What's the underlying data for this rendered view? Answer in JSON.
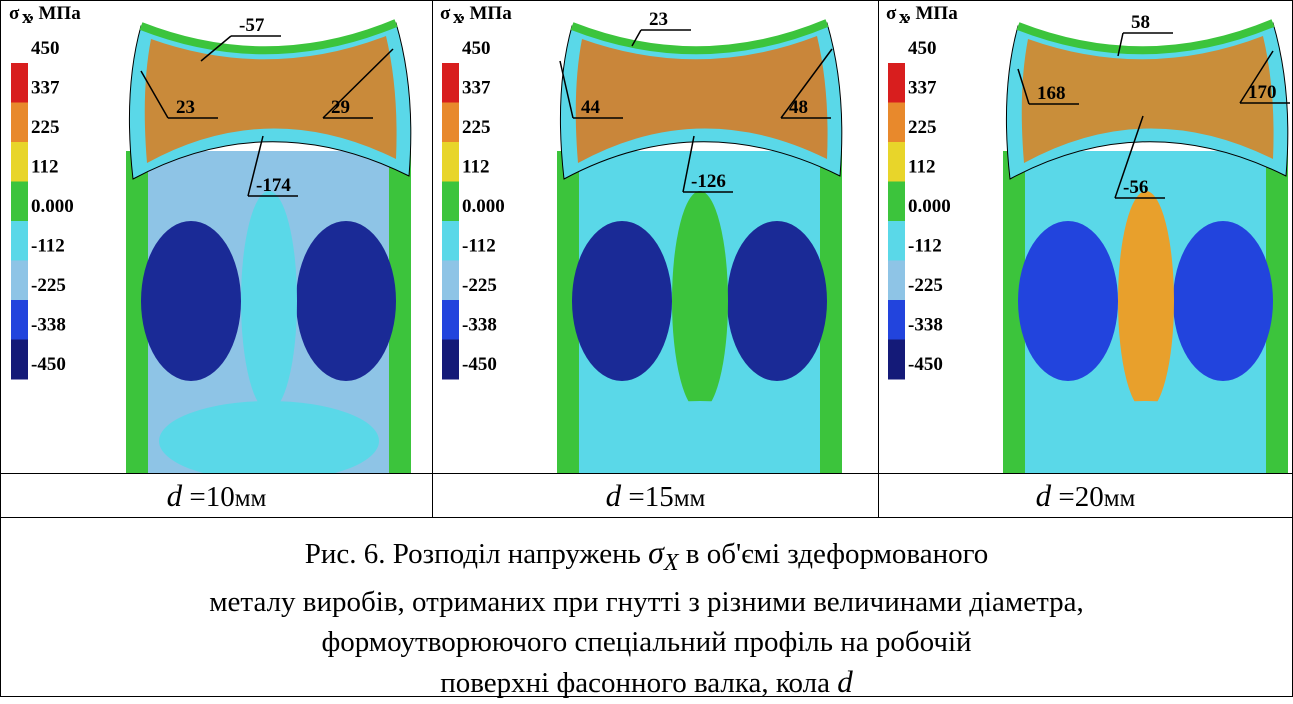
{
  "figure": {
    "legend": {
      "symbol": "σ",
      "subscript": "x",
      "unit": ", МПа",
      "labels": [
        "450",
        "337",
        "225",
        "112",
        "0.000",
        "-112",
        "-225",
        "-338",
        "-450"
      ]
    },
    "panels": [
      {
        "annotations": [
          "-57",
          "23",
          "29",
          "-174"
        ],
        "variable": "d",
        "value": "=10",
        "unit": "мм"
      },
      {
        "annotations": [
          "23",
          "44",
          "48",
          "-126"
        ],
        "variable": "d",
        "value": "=15",
        "unit": "мм"
      },
      {
        "annotations": [
          "58",
          "168",
          "170",
          "-56"
        ],
        "variable": "d",
        "value": "=20",
        "unit": "мм"
      }
    ],
    "caption": {
      "line1_before": "Рис. 6. Розподіл напружень",
      "line1_symbol": "σ",
      "line1_subscript": "X",
      "line1_after": "в об'ємі здеформованого",
      "line2": "металу виробів, отриманих при гнутті з різними величинами діаметра,",
      "line3": "формоутворюючого спеціальний профіль на робочій",
      "line4": "поверхні фасонного валка, кола",
      "line4_symbol": "d"
    }
  }
}
